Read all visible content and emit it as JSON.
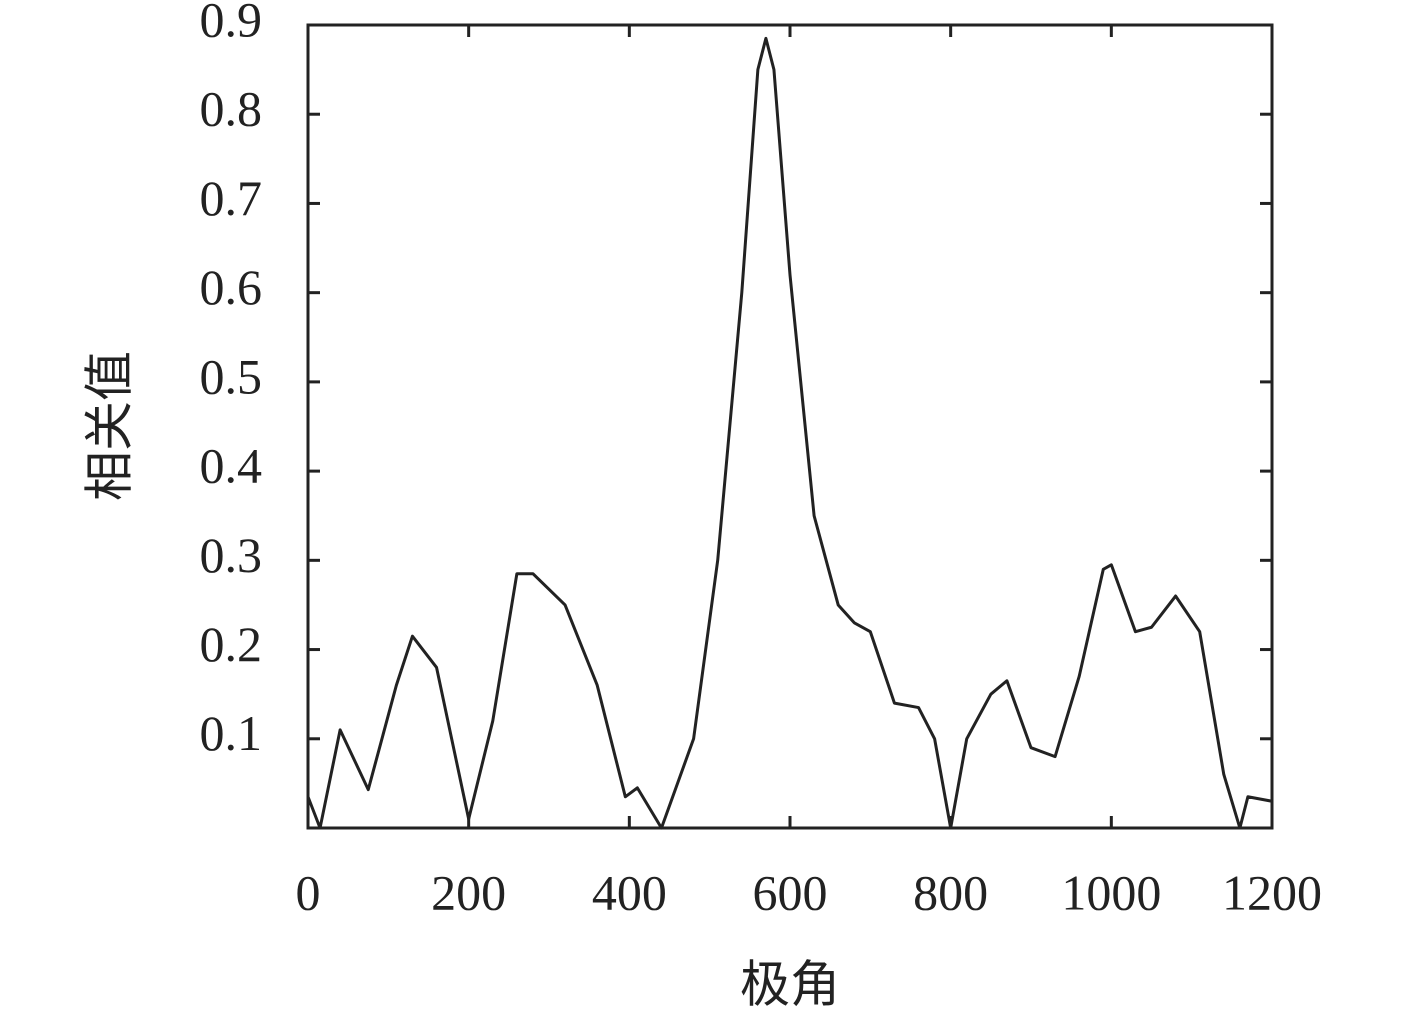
{
  "chart_data": {
    "type": "line",
    "x_label": "极角",
    "y_label": "相关值",
    "x": [
      0,
      15,
      40,
      75,
      110,
      130,
      160,
      200,
      230,
      260,
      280,
      320,
      360,
      395,
      410,
      440,
      480,
      510,
      540,
      560,
      570,
      580,
      600,
      630,
      660,
      680,
      700,
      730,
      760,
      780,
      800,
      820,
      850,
      870,
      900,
      930,
      960,
      990,
      1000,
      1030,
      1050,
      1080,
      1110,
      1140,
      1160,
      1170,
      1200
    ],
    "series": [
      {
        "color": "#222222",
        "values": [
          0.035,
          0.0,
          0.11,
          0.043,
          0.16,
          0.215,
          0.18,
          0.01,
          0.12,
          0.285,
          0.285,
          0.25,
          0.16,
          0.035,
          0.045,
          0.0,
          0.1,
          0.3,
          0.6,
          0.85,
          0.885,
          0.85,
          0.62,
          0.35,
          0.25,
          0.23,
          0.22,
          0.14,
          0.135,
          0.1,
          0.0,
          0.1,
          0.15,
          0.165,
          0.09,
          0.08,
          0.17,
          0.29,
          0.295,
          0.22,
          0.225,
          0.26,
          0.22,
          0.06,
          0.0,
          0.035,
          0.03
        ]
      }
    ],
    "xlim": [
      0,
      1200
    ],
    "ylim": [
      0,
      0.9
    ],
    "xticks": [
      0,
      200,
      400,
      600,
      800,
      1000,
      1200
    ],
    "yticks": [
      0.1,
      0.2,
      0.3,
      0.4,
      0.5,
      0.6,
      0.7,
      0.8,
      0.9
    ],
    "grid": false
  }
}
